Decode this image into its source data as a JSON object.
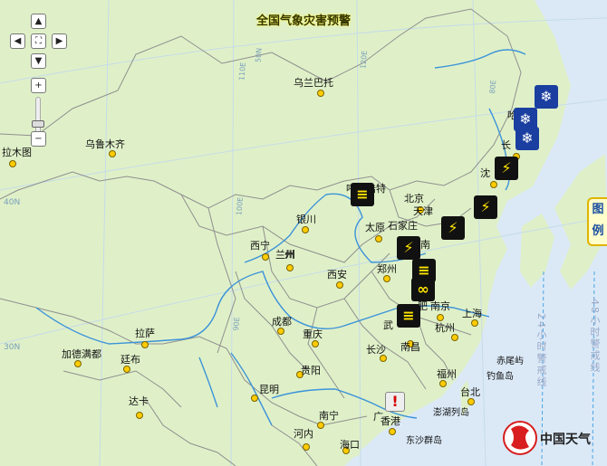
{
  "title": "全国气象灾害预警",
  "controls": {
    "up": "▲",
    "down": "▼",
    "left": "◀",
    "right": "▶",
    "center": "⛶",
    "zoom_in": "+",
    "zoom_out": "−"
  },
  "grid_labels": {
    "lon_80e": "80E",
    "lon_90e": "90E",
    "lon_100e": "100E",
    "lon_110e": "110E",
    "lon_120e": "120E",
    "lat_50n": "50N",
    "lat_40n": "40N",
    "lat_30n": "30N"
  },
  "cities": {
    "urumqi_area": "乌鲁木齐",
    "wulanbatuo": "乌兰巴托",
    "lamutu": "拉木图",
    "huhehaote": "呼和浩特",
    "beijing": "北京",
    "tianjin": "天津",
    "shijiazhuang": "石家庄",
    "taiyuan": "太原",
    "yinchuan": "银川",
    "xining": "西宁",
    "lanzhou": "兰州",
    "xian": "西安",
    "zhengzhou": "郑州",
    "jinan": "南",
    "hefei": "肥",
    "nanjing": "南京",
    "shanghai": "上海",
    "hangzhou": "杭州",
    "wuhan": "武",
    "changsha": "长沙",
    "nanchang": "南昌",
    "chengdu": "成都",
    "chongqing": "重庆",
    "guiyang": "贵阳",
    "kunming": "昆明",
    "nanning": "南宁",
    "guangzhou": "广",
    "hongkong": "香港",
    "fuzhou": "福州",
    "taibei": "台北",
    "haikou": "海口",
    "lasa": "拉萨",
    "jiademan": "加德满都",
    "tingbu": "廷布",
    "daka": "达卡",
    "henei": "河内",
    "harbin": "哈尔滨",
    "changchun": "长",
    "shenyang": "沈",
    "hangzhou2": "州",
    "bei_i": "州",
    "chishui": "赤尾屿",
    "diaoyu": "钓鱼岛",
    "donghai": "东沙群岛",
    "penghu": "澎湖列岛"
  },
  "legend": "图例",
  "warning_line_24": "24小时警戒线",
  "warning_line_48": "48小时警戒线",
  "logo_text": "中国天气",
  "warnings": [
    {
      "type": "blizzard",
      "glyph": "❄"
    },
    {
      "type": "blizzard",
      "glyph": "❄"
    },
    {
      "type": "blizzard",
      "glyph": "❄"
    },
    {
      "type": "thunder",
      "glyph": "⚡"
    },
    {
      "type": "thunder",
      "glyph": "⚡"
    },
    {
      "type": "thunder",
      "glyph": "⚡"
    },
    {
      "type": "thunder",
      "glyph": "⚡"
    },
    {
      "type": "fog",
      "glyph": "≡"
    },
    {
      "type": "fog",
      "glyph": "≡"
    },
    {
      "type": "fog",
      "glyph": "≡"
    },
    {
      "type": "haze",
      "glyph": "∞"
    },
    {
      "type": "alert",
      "glyph": "!"
    }
  ],
  "colors": {
    "land": "#dff0c8",
    "sea": "#d8e8f8",
    "border": "#9a9a9a",
    "river": "#3c93d9",
    "province": "#8c8c8c"
  }
}
